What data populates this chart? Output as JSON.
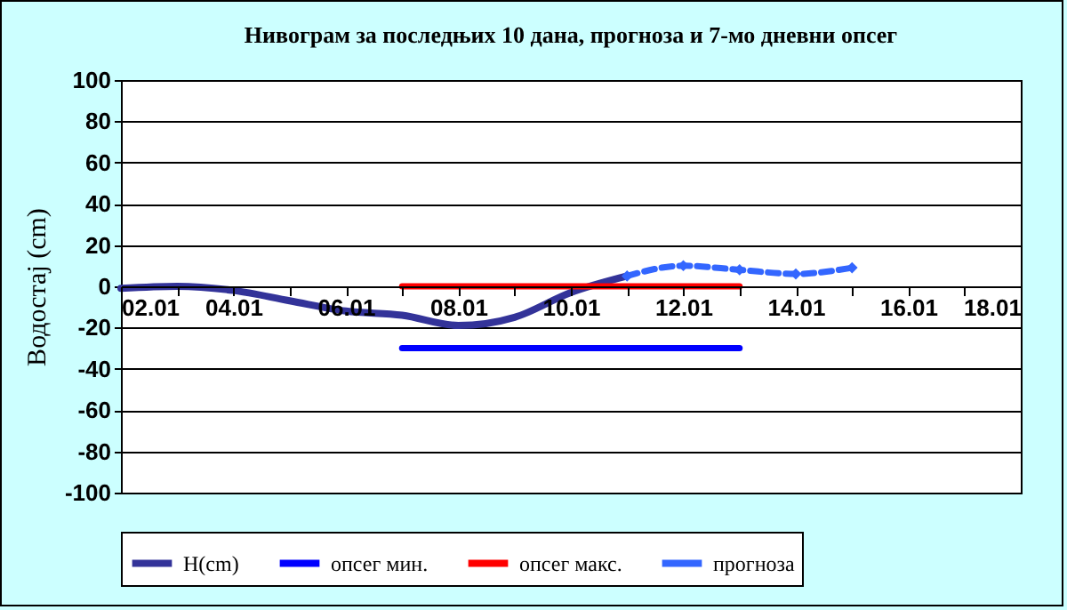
{
  "chart_data": {
    "type": "line",
    "title": "Нивограм за последњих 10 дана, прогноза и 7-мо дневни опсег",
    "ylabel": "Водостај (cm)",
    "xlim": [
      "--01-02",
      "--01-18"
    ],
    "xticks": [
      {
        "value": "--01-02",
        "label": "02.01"
      },
      {
        "value": "--01-03",
        "label": null
      },
      {
        "value": "--01-04",
        "label": "04.01"
      },
      {
        "value": "--01-05",
        "label": null
      },
      {
        "value": "--01-06",
        "label": "06.01"
      },
      {
        "value": "--01-07",
        "label": null
      },
      {
        "value": "--01-08",
        "label": "08.01"
      },
      {
        "value": "--01-09",
        "label": null
      },
      {
        "value": "--01-10",
        "label": "10.01"
      },
      {
        "value": "--01-11",
        "label": null
      },
      {
        "value": "--01-12",
        "label": "12.01"
      },
      {
        "value": "--01-13",
        "label": null
      },
      {
        "value": "--01-14",
        "label": "14.01"
      },
      {
        "value": "--01-15",
        "label": null
      },
      {
        "value": "--01-16",
        "label": "16.01"
      },
      {
        "value": "--01-17",
        "label": null
      },
      {
        "value": "--01-18",
        "label": "18.01"
      }
    ],
    "ylim": [
      -100,
      100
    ],
    "yticks": [
      -100,
      -80,
      -60,
      -40,
      -20,
      0,
      20,
      40,
      60,
      80,
      100
    ],
    "grid": "y",
    "legend": "bottom",
    "series": [
      {
        "name": "H(cm)",
        "color": "#333399",
        "marker": "none",
        "line_style": "solid",
        "x": [
          "--01-02",
          "--01-03",
          "--01-04",
          "--01-05",
          "--01-06",
          "--01-07",
          "--01-08",
          "--01-09",
          "--01-10",
          "--01-11"
        ],
        "values": [
          -1,
          0,
          -2,
          -7,
          -12,
          -14,
          -19,
          -15,
          -3,
          5
        ]
      },
      {
        "name": "опсег мин.",
        "color": "#0000ff",
        "marker": "none",
        "line_style": "solid",
        "x": [
          "--01-07",
          "--01-13"
        ],
        "values": [
          -30,
          -30
        ]
      },
      {
        "name": "опсег макс.",
        "color": "#ff0000",
        "marker": "none",
        "line_style": "solid",
        "x": [
          "--01-07",
          "--01-13"
        ],
        "values": [
          0,
          0
        ]
      },
      {
        "name": "прогноза",
        "color": "#3366ff",
        "marker": "diamond",
        "line_style": "dashed",
        "x": [
          "--01-11",
          "--01-12",
          "--01-13",
          "--01-14",
          "--01-15"
        ],
        "values": [
          5,
          10,
          8,
          6,
          9
        ]
      }
    ]
  }
}
